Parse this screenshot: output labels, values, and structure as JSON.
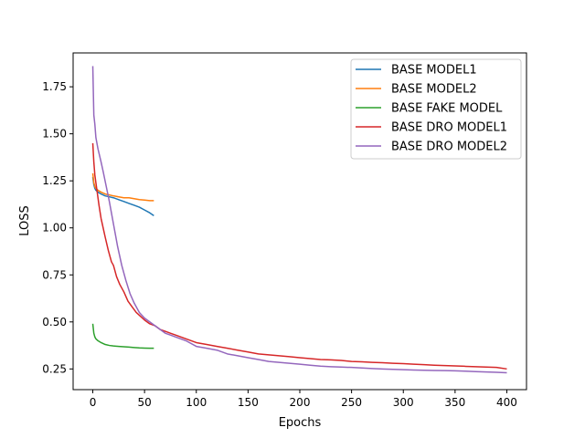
{
  "chart_data": {
    "type": "line",
    "title": "",
    "xlabel": "Epochs",
    "ylabel": "LOSS",
    "xlim": [
      -19,
      419
    ],
    "ylim": [
      0.14,
      1.93
    ],
    "xticks": [
      0,
      50,
      100,
      150,
      200,
      250,
      300,
      350,
      400
    ],
    "yticks": [
      0.25,
      0.5,
      0.75,
      1.0,
      1.25,
      1.5,
      1.75
    ],
    "grid": false,
    "legend_position": "top-right",
    "series": [
      {
        "name": "BASE MODEL1",
        "color": "#1f77b4",
        "x": [
          0,
          1,
          2,
          3,
          5,
          8,
          12,
          16,
          20,
          25,
          30,
          35,
          40,
          45,
          50,
          55,
          59
        ],
        "y": [
          1.27,
          1.23,
          1.21,
          1.2,
          1.19,
          1.18,
          1.17,
          1.165,
          1.16,
          1.15,
          1.14,
          1.13,
          1.12,
          1.11,
          1.095,
          1.08,
          1.065
        ]
      },
      {
        "name": "BASE MODEL2",
        "color": "#ff7f0e",
        "x": [
          0,
          1,
          2,
          3,
          5,
          8,
          12,
          16,
          20,
          25,
          30,
          35,
          40,
          45,
          50,
          55,
          59
        ],
        "y": [
          1.29,
          1.24,
          1.22,
          1.21,
          1.2,
          1.19,
          1.18,
          1.175,
          1.17,
          1.165,
          1.16,
          1.16,
          1.155,
          1.15,
          1.148,
          1.145,
          1.145
        ]
      },
      {
        "name": "BASE FAKE MODEL",
        "color": "#2ca02c",
        "x": [
          0,
          1,
          2,
          3,
          5,
          8,
          12,
          16,
          20,
          25,
          30,
          35,
          40,
          45,
          50,
          55,
          59
        ],
        "y": [
          0.49,
          0.44,
          0.42,
          0.41,
          0.4,
          0.39,
          0.38,
          0.375,
          0.372,
          0.37,
          0.368,
          0.366,
          0.364,
          0.362,
          0.361,
          0.36,
          0.36
        ]
      },
      {
        "name": "BASE DRO MODEL1",
        "color": "#d62728",
        "x": [
          0,
          1,
          2,
          4,
          6,
          8,
          10,
          12,
          15,
          18,
          20,
          23,
          26,
          30,
          34,
          38,
          42,
          46,
          50,
          55,
          60,
          65,
          70,
          75,
          80,
          90,
          100,
          110,
          120,
          130,
          140,
          150,
          160,
          170,
          180,
          190,
          200,
          210,
          220,
          230,
          240,
          250,
          260,
          270,
          280,
          290,
          300,
          310,
          320,
          330,
          340,
          350,
          360,
          370,
          380,
          390,
          400
        ],
        "y": [
          1.45,
          1.35,
          1.28,
          1.2,
          1.12,
          1.05,
          1.0,
          0.95,
          0.88,
          0.82,
          0.8,
          0.74,
          0.7,
          0.66,
          0.61,
          0.58,
          0.55,
          0.53,
          0.51,
          0.49,
          0.48,
          0.46,
          0.45,
          0.44,
          0.43,
          0.41,
          0.39,
          0.38,
          0.37,
          0.36,
          0.35,
          0.34,
          0.33,
          0.325,
          0.32,
          0.315,
          0.31,
          0.305,
          0.3,
          0.298,
          0.295,
          0.29,
          0.288,
          0.285,
          0.283,
          0.28,
          0.278,
          0.275,
          0.273,
          0.27,
          0.268,
          0.266,
          0.264,
          0.262,
          0.26,
          0.258,
          0.25
        ]
      },
      {
        "name": "BASE DRO MODEL2",
        "color": "#9467bd",
        "x": [
          0,
          1,
          2,
          3,
          5,
          8,
          10,
          13,
          16,
          20,
          24,
          28,
          32,
          36,
          40,
          45,
          50,
          55,
          60,
          65,
          70,
          75,
          80,
          90,
          100,
          110,
          120,
          130,
          140,
          150,
          160,
          170,
          180,
          190,
          200,
          210,
          220,
          230,
          240,
          250,
          260,
          270,
          280,
          290,
          300,
          310,
          320,
          330,
          340,
          350,
          360,
          370,
          380,
          390,
          400
        ],
        "y": [
          1.86,
          1.6,
          1.55,
          1.48,
          1.42,
          1.35,
          1.3,
          1.22,
          1.14,
          1.02,
          0.9,
          0.8,
          0.72,
          0.65,
          0.6,
          0.55,
          0.52,
          0.5,
          0.48,
          0.46,
          0.44,
          0.43,
          0.42,
          0.4,
          0.37,
          0.36,
          0.35,
          0.33,
          0.32,
          0.31,
          0.3,
          0.29,
          0.285,
          0.28,
          0.275,
          0.27,
          0.265,
          0.262,
          0.26,
          0.258,
          0.255,
          0.252,
          0.25,
          0.248,
          0.246,
          0.244,
          0.243,
          0.242,
          0.241,
          0.24,
          0.238,
          0.236,
          0.234,
          0.232,
          0.23
        ]
      }
    ]
  }
}
